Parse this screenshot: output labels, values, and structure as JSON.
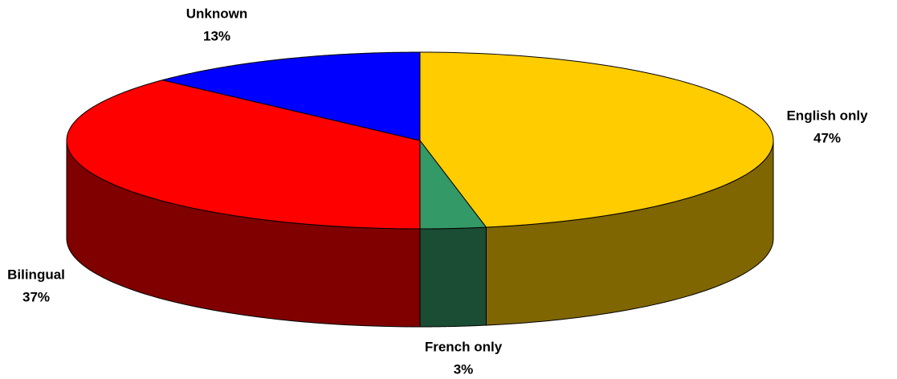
{
  "chart_data": {
    "type": "pie3d",
    "categories": [
      "English only",
      "French only",
      "Bilingual",
      "Unknown"
    ],
    "values": [
      47,
      3,
      37,
      13
    ],
    "value_labels": [
      "47%",
      "3%",
      "37%",
      "13%"
    ],
    "colors": [
      "#ffcc00",
      "#339966",
      "#ff0000",
      "#0000ff"
    ]
  }
}
